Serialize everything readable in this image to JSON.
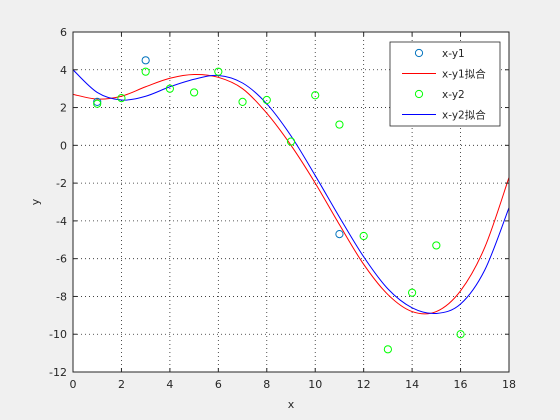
{
  "chart_data": {
    "type": "scatter",
    "xlabel": "x",
    "ylabel": "y",
    "xlim": [
      0,
      18
    ],
    "ylim": [
      -12,
      6
    ],
    "xticks": [
      0,
      2,
      4,
      6,
      8,
      10,
      12,
      14,
      16,
      18
    ],
    "yticks": [
      -12,
      -10,
      -8,
      -6,
      -4,
      -2,
      0,
      2,
      4,
      6
    ],
    "grid": "dotted",
    "legend_position": "top-right",
    "series": [
      {
        "name": "x-y1",
        "kind": "markers",
        "color": "#0072bd",
        "x": [
          1,
          3,
          11
        ],
        "y": [
          2.3,
          4.5,
          -4.7
        ]
      },
      {
        "name": "x-y1拟合",
        "kind": "line",
        "color": "#ff0000",
        "x": [
          0,
          1,
          2,
          3,
          4,
          5,
          6,
          7,
          8,
          9,
          10,
          11,
          12,
          13,
          14,
          15,
          16,
          17,
          18
        ],
        "y": [
          2.7,
          2.45,
          2.6,
          3.1,
          3.55,
          3.75,
          3.6,
          3.0,
          1.7,
          0.0,
          -2.0,
          -4.2,
          -6.3,
          -7.9,
          -8.8,
          -8.8,
          -7.7,
          -5.4,
          -1.7
        ]
      },
      {
        "name": "x-y2",
        "kind": "markers",
        "color": "#00ff00",
        "x": [
          1,
          2,
          3,
          4,
          5,
          6,
          7,
          8,
          9,
          10,
          11,
          12,
          13,
          14,
          15,
          16
        ],
        "y": [
          2.2,
          2.5,
          3.9,
          3.0,
          2.8,
          3.9,
          2.3,
          2.4,
          0.2,
          2.65,
          1.1,
          -4.8,
          -10.8,
          -7.8,
          -5.3,
          -10.0
        ]
      },
      {
        "name": "x-y2拟合",
        "kind": "line",
        "color": "#0000ff",
        "x": [
          0,
          1,
          2,
          3,
          4,
          5,
          6,
          7,
          8,
          9,
          10,
          11,
          12,
          13,
          14,
          15,
          16,
          17,
          18
        ],
        "y": [
          4.0,
          2.8,
          2.4,
          2.6,
          3.1,
          3.5,
          3.7,
          3.3,
          2.2,
          0.5,
          -1.6,
          -3.8,
          -5.9,
          -7.6,
          -8.6,
          -8.9,
          -8.4,
          -6.6,
          -3.3
        ]
      }
    ]
  }
}
